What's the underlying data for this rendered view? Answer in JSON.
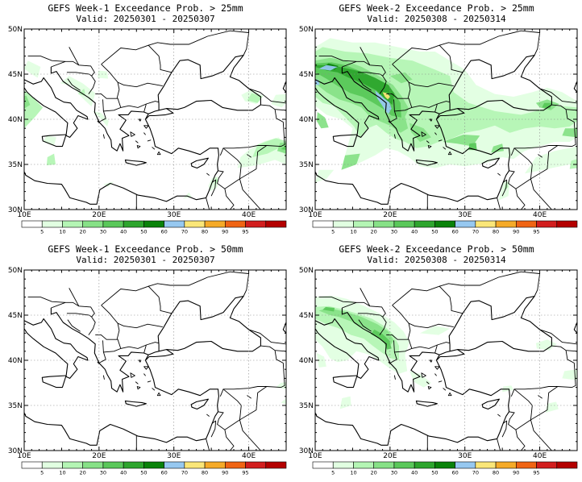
{
  "colorbar": {
    "labels": [
      "5",
      "10",
      "20",
      "30",
      "40",
      "50",
      "60",
      "70",
      "80",
      "90",
      "95"
    ],
    "colors": [
      "#ffffff",
      "#e1ffe1",
      "#b4f5b4",
      "#87e187",
      "#5ac85a",
      "#2da52d",
      "#0a820a",
      "#96c8f0",
      "#fae678",
      "#f5aa28",
      "#f06414",
      "#d21e1e",
      "#b40000"
    ]
  },
  "axes": {
    "x_ticks": [
      "10E",
      "20E",
      "30E",
      "40E"
    ],
    "y_ticks": [
      "50N",
      "45N",
      "40N",
      "35N",
      "30N"
    ],
    "lon_range": [
      10,
      45
    ],
    "lat_range": [
      30,
      50
    ]
  },
  "panels": [
    {
      "title": "GEFS Week-1 Exceedance Prob. > 25mm",
      "valid": "Valid: 20250301 - 20250307",
      "threshold": "25mm",
      "week": "Week-1"
    },
    {
      "title": "GEFS Week-2 Exceedance Prob. > 25mm",
      "valid": "Valid: 20250308 - 20250314",
      "threshold": "25mm",
      "week": "Week-2"
    },
    {
      "title": "GEFS Week-1 Exceedance Prob. > 50mm",
      "valid": "Valid: 20250301 - 20250307",
      "threshold": "50mm",
      "week": "Week-1"
    },
    {
      "title": "GEFS Week-2 Exceedance Prob. > 50mm",
      "valid": "Valid: 20250308 - 20250314",
      "threshold": "50mm",
      "week": "Week-2"
    }
  ]
}
